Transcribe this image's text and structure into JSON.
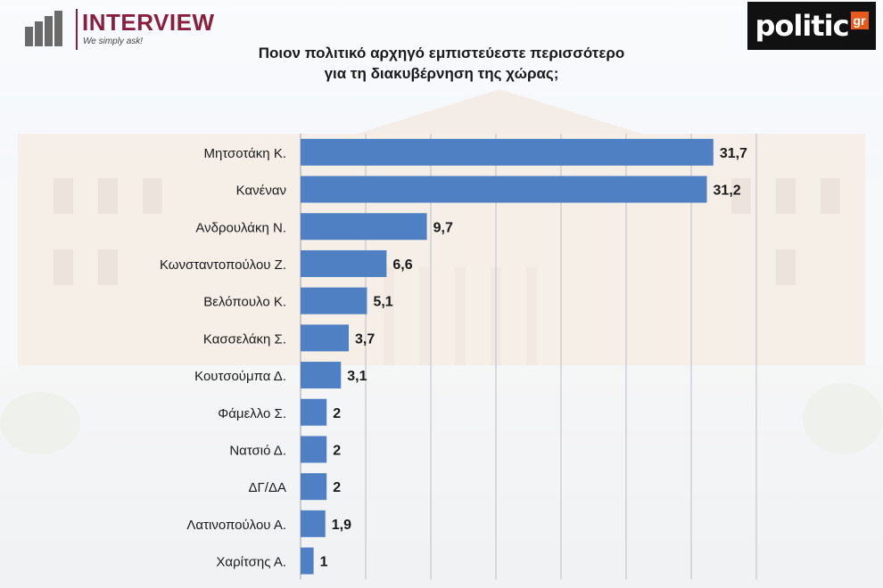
{
  "brand": {
    "pollster_name": "INTERVIEW",
    "pollster_tagline": "We simply ask!",
    "media_name": "politic",
    "media_suffix": "gr"
  },
  "title_line1": "Ποιον πολιτικό αρχηγό εμπιστεύεστε περισσότερο",
  "title_line2": "για τη διακυβέρνηση της χώρας;",
  "colors": {
    "bar": "#4f80c4",
    "brand": "#8b1e3f",
    "accent": "#e65a1e"
  },
  "chart_data": {
    "type": "bar",
    "orientation": "horizontal",
    "title": "Ποιον πολιτικό αρχηγό εμπιστεύεστε περισσότερο για τη διακυβέρνηση της χώρας;",
    "categories": [
      "Μητσοτάκη Κ.",
      "Κανέναν",
      "Ανδρουλάκη Ν.",
      "Κωνσταντοπούλου Ζ.",
      "Βελόπουλο Κ.",
      "Κασσελάκη Σ.",
      "Κουτσούμπα Δ.",
      "Φάμελλο Σ.",
      "Νατσιό Δ.",
      "ΔΓ/ΔΑ",
      "Λατινοπούλου Α.",
      "Χαρίτσης Α."
    ],
    "values": [
      31.7,
      31.2,
      9.7,
      6.6,
      5.1,
      3.7,
      3.1,
      2,
      2,
      2,
      1.9,
      1
    ],
    "value_labels": [
      "31,7",
      "31,2",
      "9,7",
      "6,6",
      "5,1",
      "3,7",
      "3,1",
      "2",
      "2",
      "2",
      "1,9",
      "1"
    ],
    "xlim": [
      0,
      35
    ],
    "grid": true,
    "legend": "none"
  }
}
